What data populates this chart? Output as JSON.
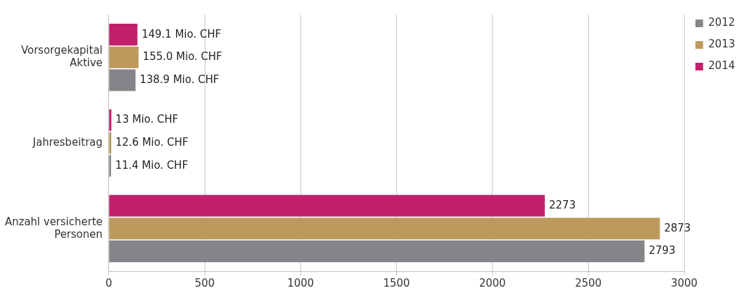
{
  "chart_data": {
    "type": "bar",
    "orientation": "horizontal",
    "categories": [
      "Vorsorgekapital Aktive",
      "Jahresbeitrag",
      "Anzahl versicherte Personen"
    ],
    "series": [
      {
        "name": "2012",
        "color": "#848589",
        "values": [
          138.9,
          11.4,
          2793
        ],
        "value_labels": [
          "138.9 Mio. CHF",
          "11.4 Mio. CHF",
          "2793"
        ]
      },
      {
        "name": "2013",
        "color": "#bd9a5c",
        "values": [
          155.0,
          12.6,
          2873
        ],
        "value_labels": [
          "155.0 Mio. CHF",
          "12.6 Mio. CHF",
          "2873"
        ]
      },
      {
        "name": "2014",
        "color": "#c21f6a",
        "values": [
          149.1,
          13,
          2273
        ],
        "value_labels": [
          "149.1 Mio. CHF",
          "13 Mio. CHF",
          "2273"
        ]
      }
    ],
    "xlim": [
      0,
      3000
    ],
    "xticks": [
      0,
      500,
      1000,
      1500,
      2000,
      2500,
      3000
    ],
    "grid": "x",
    "legend": "top right"
  }
}
